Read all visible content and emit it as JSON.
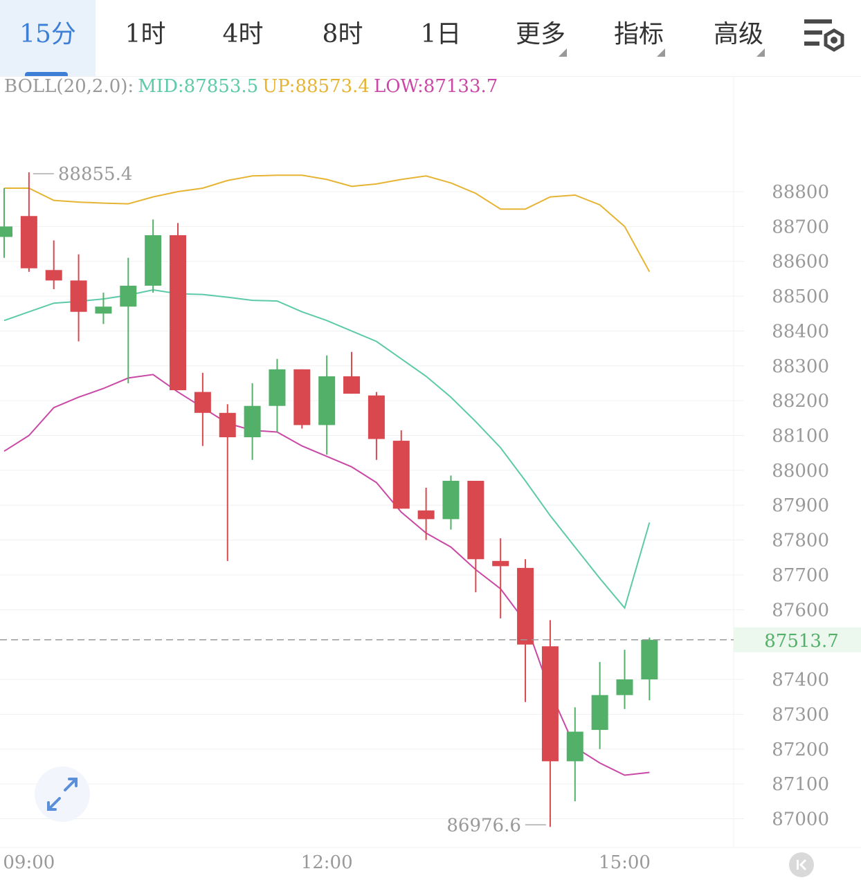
{
  "tabs": [
    {
      "label": "15分",
      "active": true
    },
    {
      "label": "1时"
    },
    {
      "label": "4时"
    },
    {
      "label": "8时"
    },
    {
      "label": "1日"
    },
    {
      "label": "更多",
      "dropdown": true
    },
    {
      "label": "指标",
      "dropdown": true
    },
    {
      "label": "高级",
      "dropdown": true
    }
  ],
  "toolbar": {
    "settings_icon": "chart-settings-icon",
    "expand_icon": "expand-arrows-icon",
    "back_icon": "scroll-to-latest-icon"
  },
  "indicator": {
    "name": "BOLL(20,2.0):",
    "mid_label": "MID:87853.5",
    "up_label": "UP:88573.4",
    "low_label": "LOW:87133.7"
  },
  "colors": {
    "up_candle": "#52b068",
    "down_candle": "#d9484f",
    "mid_line": "#5ccaa8",
    "up_line": "#e6b432",
    "low_line": "#c948a6",
    "accent": "#3d7fd6",
    "last_price": "#52b068"
  },
  "chart_data": {
    "type": "candlestick",
    "interval": "15分",
    "y_axis": {
      "range": [
        86950,
        89000
      ],
      "ticks": [
        88800,
        88700,
        88600,
        88500,
        88400,
        88300,
        88200,
        88100,
        88000,
        87900,
        87800,
        87700,
        87600,
        87400,
        87300,
        87200,
        87100,
        87000
      ]
    },
    "x_axis": {
      "tick_labels": [
        {
          "index": 1,
          "label": "09:00"
        },
        {
          "index": 13,
          "label": "12:00"
        },
        {
          "index": 25,
          "label": "15:00"
        }
      ]
    },
    "last_price": 87513.7,
    "high_marker": {
      "index": 1,
      "value": 88855.4,
      "label": "88855.4"
    },
    "low_marker": {
      "index": 22,
      "value": 86976.6,
      "label": "86976.6"
    },
    "candles": [
      {
        "open": 88670,
        "high": 88810,
        "low": 88610,
        "close": 88700
      },
      {
        "open": 88730,
        "high": 88855.4,
        "low": 88570,
        "close": 88580
      },
      {
        "open": 88575,
        "high": 88660,
        "low": 88520,
        "close": 88545
      },
      {
        "open": 88545,
        "high": 88620,
        "low": 88370,
        "close": 88455
      },
      {
        "open": 88450,
        "high": 88510,
        "low": 88420,
        "close": 88470
      },
      {
        "open": 88470,
        "high": 88610,
        "low": 88250,
        "close": 88530
      },
      {
        "open": 88530,
        "high": 88720,
        "low": 88510,
        "close": 88675
      },
      {
        "open": 88675,
        "high": 88710,
        "low": 88230,
        "close": 88230
      },
      {
        "open": 88225,
        "high": 88280,
        "low": 88070,
        "close": 88165
      },
      {
        "open": 88165,
        "high": 88190,
        "low": 87740,
        "close": 88095
      },
      {
        "open": 88095,
        "high": 88250,
        "low": 88030,
        "close": 88185
      },
      {
        "open": 88185,
        "high": 88320,
        "low": 88110,
        "close": 88290
      },
      {
        "open": 88290,
        "high": 88290,
        "low": 88120,
        "close": 88130
      },
      {
        "open": 88130,
        "high": 88330,
        "low": 88045,
        "close": 88270
      },
      {
        "open": 88270,
        "high": 88340,
        "low": 88220,
        "close": 88220
      },
      {
        "open": 88215,
        "high": 88225,
        "low": 88030,
        "close": 88090
      },
      {
        "open": 88085,
        "high": 88115,
        "low": 87890,
        "close": 87890
      },
      {
        "open": 87885,
        "high": 87950,
        "low": 87800,
        "close": 87860
      },
      {
        "open": 87860,
        "high": 87985,
        "low": 87830,
        "close": 87970
      },
      {
        "open": 87970,
        "high": 87970,
        "low": 87650,
        "close": 87745
      },
      {
        "open": 87740,
        "high": 87805,
        "low": 87575,
        "close": 87725
      },
      {
        "open": 87720,
        "high": 87745,
        "low": 87335,
        "close": 87500
      },
      {
        "open": 87495,
        "high": 87570,
        "low": 86976.6,
        "close": 87165
      },
      {
        "open": 87165,
        "high": 87320,
        "low": 87050,
        "close": 87250
      },
      {
        "open": 87255,
        "high": 87450,
        "low": 87200,
        "close": 87355
      },
      {
        "open": 87355,
        "high": 87485,
        "low": 87315,
        "close": 87400
      },
      {
        "open": 87400,
        "high": 87520,
        "low": 87340,
        "close": 87513.7
      }
    ],
    "series": [
      {
        "name": "UP",
        "values": [
          88810,
          88810,
          88775,
          88770,
          88767,
          88765,
          88785,
          88800,
          88810,
          88832,
          88845,
          88847,
          88847,
          88835,
          88815,
          88822,
          88835,
          88845,
          88825,
          88795,
          88750,
          88750,
          88785,
          88790,
          88762,
          88700,
          88570
        ]
      },
      {
        "name": "MID",
        "values": [
          88430,
          88455,
          88480,
          88485,
          88492,
          88503,
          88518,
          88507,
          88505,
          88497,
          88488,
          88486,
          88455,
          88430,
          88400,
          88370,
          88320,
          88270,
          88210,
          88140,
          88065,
          87970,
          87870,
          87780,
          87690,
          87605,
          87850
        ]
      },
      {
        "name": "LOW",
        "values": [
          88055,
          88100,
          88180,
          88210,
          88235,
          88265,
          88275,
          88225,
          88180,
          88135,
          88115,
          88110,
          88070,
          88040,
          88010,
          87965,
          87880,
          87820,
          87780,
          87715,
          87660,
          87565,
          87365,
          87205,
          87160,
          87125,
          87133
        ]
      }
    ]
  }
}
